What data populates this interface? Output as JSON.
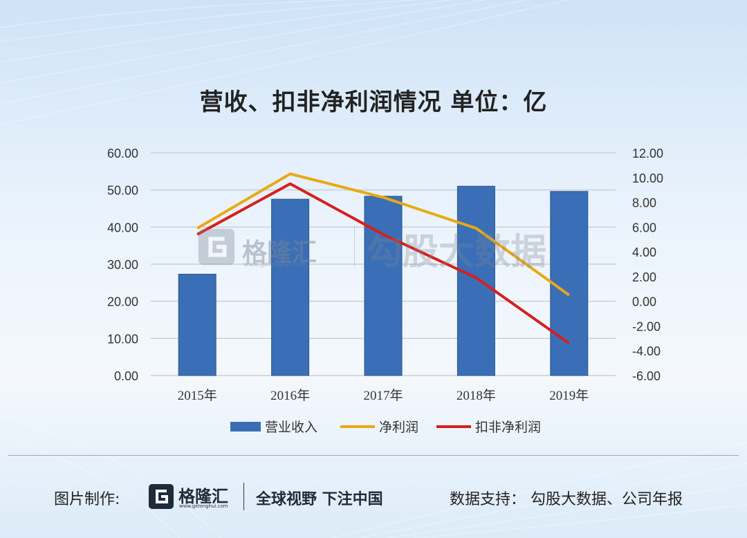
{
  "title": "营收、扣非净利润情况  单位：亿",
  "watermark": {
    "brand": "格隆汇",
    "url": "www.gelonghui.com",
    "right": "勾股大数据"
  },
  "footer": {
    "made_by": "图片制作:",
    "brand": "格隆汇",
    "brand_url": "www.gelonghui.com",
    "slogan": "全球视野 下注中国",
    "source": "数据支持：  勾股大数据、公司年报"
  },
  "colors": {
    "bar": "#3a6fb7",
    "net_profit": "#e8a913",
    "deducted_profit": "#d81e1e",
    "grid": "#c9cfd6"
  },
  "chart_data": {
    "type": "bar",
    "categories": [
      "2015年",
      "2016年",
      "2017年",
      "2018年",
      "2019年"
    ],
    "left_axis": {
      "ylim": [
        0,
        60
      ],
      "ticks": [
        "0.00",
        "10.00",
        "20.00",
        "30.00",
        "40.00",
        "50.00",
        "60.00"
      ]
    },
    "right_axis": {
      "ylim": [
        -6,
        12
      ],
      "ticks": [
        "-6.00",
        "-4.00",
        "-2.00",
        "0.00",
        "2.00",
        "4.00",
        "6.00",
        "8.00",
        "10.00",
        "12.00"
      ]
    },
    "series": [
      {
        "name": "营业收入",
        "type": "bar",
        "axis": "left",
        "values": [
          27.3,
          47.5,
          48.3,
          51.0,
          49.6
        ]
      },
      {
        "name": "净利润",
        "type": "line",
        "axis": "right",
        "values": [
          5.9,
          10.3,
          8.4,
          5.9,
          0.5
        ]
      },
      {
        "name": "扣非净利润",
        "type": "line",
        "axis": "right",
        "values": [
          5.4,
          9.5,
          5.4,
          1.9,
          -3.4
        ]
      }
    ],
    "legend_position": "bottom",
    "grid": true
  }
}
